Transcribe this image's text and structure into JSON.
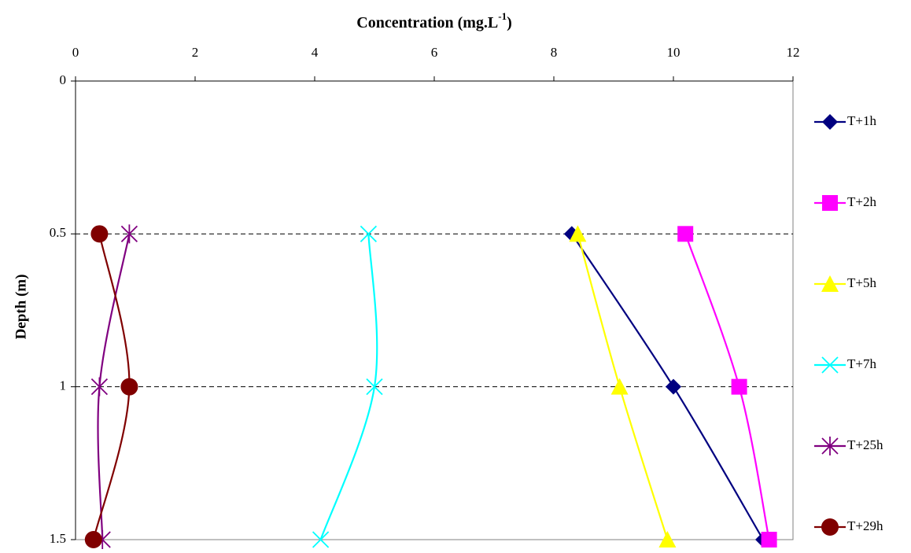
{
  "chart_data": {
    "type": "line",
    "title": "Concentration (mg.L",
    "title_superscript": "-1",
    "title_end": ")",
    "y_label": "Depth (m)",
    "y": [
      0.5,
      1,
      1.5
    ],
    "xlim": [
      0,
      12
    ],
    "xticks": [
      0,
      2,
      4,
      6,
      8,
      10,
      12
    ],
    "x_axis_position": "top",
    "ylim": [
      0,
      1.5
    ],
    "yticks": [
      0,
      0.5,
      1,
      1.5
    ],
    "y_inverted": true,
    "grid": true,
    "smooth": true,
    "legend": "right",
    "series": [
      {
        "name": "T+1h",
        "color": "#000080",
        "marker": "diamond",
        "values": [
          8.3,
          10.0,
          11.5
        ]
      },
      {
        "name": "T+2h",
        "color": "#FF00FF",
        "marker": "square",
        "values": [
          10.2,
          11.1,
          11.6
        ]
      },
      {
        "name": "T+5h",
        "color": "#FFFF00",
        "marker": "triangle",
        "values": [
          8.4,
          9.1,
          9.9
        ]
      },
      {
        "name": "T+7h",
        "color": "#00FFFF",
        "marker": "x",
        "values": [
          4.9,
          5.0,
          4.1
        ]
      },
      {
        "name": "T+25h",
        "color": "#800080",
        "marker": "star",
        "values": [
          0.9,
          0.4,
          0.45
        ]
      },
      {
        "name": "T+29h",
        "color": "#800000",
        "marker": "circle",
        "values": [
          0.4,
          0.9,
          0.3
        ]
      }
    ]
  }
}
